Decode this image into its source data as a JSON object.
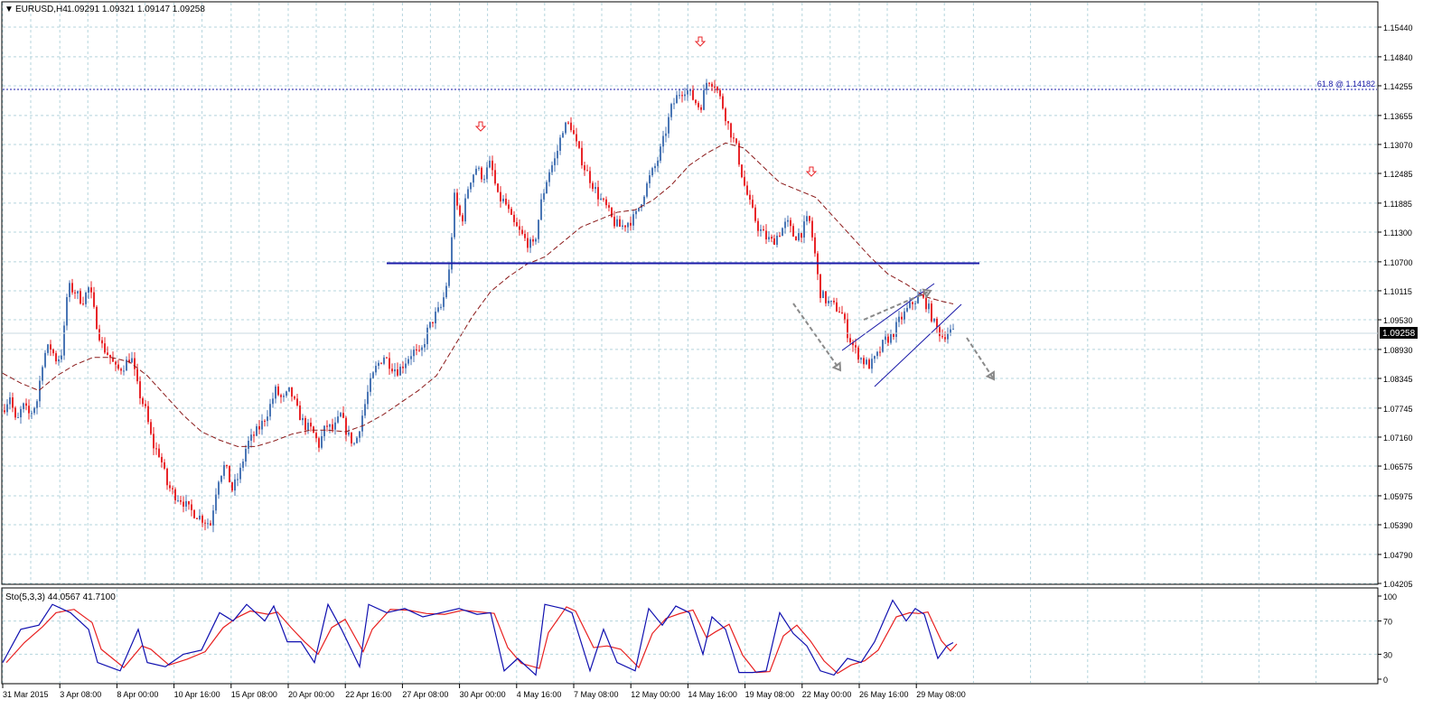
{
  "header": {
    "caret": "▼",
    "symbol_label": "EURUSD,H4",
    "ohlc": "1.09291 1.09321 1.09147 1.09258"
  },
  "price_axis": {
    "ticks": [
      "1.15440",
      "1.14840",
      "1.14255",
      "1.13655",
      "1.13070",
      "1.12485",
      "1.11885",
      "1.11300",
      "1.10700",
      "1.10115",
      "1.09530",
      "1.08930",
      "1.08345",
      "1.07745",
      "1.07160",
      "1.06575",
      "1.05975",
      "1.05390",
      "1.04790",
      "1.04205"
    ],
    "current_price": "1.09258"
  },
  "fib_label": "61.8 @ 1.14182",
  "stochastic": {
    "label": "Sto(5,3,3) 44.0567 41.7100",
    "ticks": [
      "100",
      "70",
      "30",
      "0"
    ]
  },
  "time_axis": {
    "labels": [
      "31 Mar 2015",
      "3 Apr 08:00",
      "8 Apr 00:00",
      "10 Apr 16:00",
      "15 Apr 08:00",
      "20 Apr 00:00",
      "22 Apr 16:00",
      "27 Apr 08:00",
      "30 Apr 00:00",
      "4 May 16:00",
      "7 May 08:00",
      "12 May 00:00",
      "14 May 16:00",
      "19 May 08:00",
      "22 May 00:00",
      "26 May 16:00",
      "29 May 08:00"
    ]
  },
  "colors": {
    "bull": "#4a76b5",
    "bear": "#e8262a",
    "ma": "#8b1a1a",
    "support_line": "#1a1aa8",
    "grid": "#b4d4dc",
    "arrow_gray": "#8a8a8a",
    "stoch_main": "#1010b0",
    "stoch_signal": "#e82020"
  },
  "chart_data": {
    "type": "candlestick",
    "symbol": "EURUSD",
    "timeframe": "H4",
    "ylim": [
      1.04205,
      1.1544
    ],
    "points": [
      [
        0,
        1.077
      ],
      [
        8,
        1.08
      ],
      [
        15,
        1.074
      ],
      [
        22,
        1.078
      ],
      [
        30,
        1.076
      ],
      [
        38,
        1.079
      ],
      [
        45,
        1.088
      ],
      [
        52,
        1.09
      ],
      [
        60,
        1.087
      ],
      [
        66,
        1.089
      ],
      [
        72,
        1.102
      ],
      [
        80,
        1.101
      ],
      [
        88,
        1.099
      ],
      [
        96,
        1.102
      ],
      [
        102,
        1.096
      ],
      [
        110,
        1.09
      ],
      [
        118,
        1.088
      ],
      [
        126,
        1.085
      ],
      [
        134,
        1.086
      ],
      [
        142,
        1.088
      ],
      [
        150,
        1.081
      ],
      [
        158,
        1.077
      ],
      [
        166,
        1.07
      ],
      [
        174,
        1.068
      ],
      [
        182,
        1.062
      ],
      [
        190,
        1.06
      ],
      [
        198,
        1.059
      ],
      [
        206,
        1.057
      ],
      [
        214,
        1.056
      ],
      [
        222,
        1.055
      ],
      [
        230,
        1.054
      ],
      [
        238,
        1.063
      ],
      [
        246,
        1.066
      ],
      [
        254,
        1.061
      ],
      [
        262,
        1.064
      ],
      [
        270,
        1.07
      ],
      [
        278,
        1.072
      ],
      [
        286,
        1.074
      ],
      [
        294,
        1.077
      ],
      [
        302,
        1.081
      ],
      [
        310,
        1.079
      ],
      [
        318,
        1.081
      ],
      [
        326,
        1.077
      ],
      [
        334,
        1.074
      ],
      [
        342,
        1.073
      ],
      [
        350,
        1.07
      ],
      [
        358,
        1.074
      ],
      [
        366,
        1.073
      ],
      [
        374,
        1.076
      ],
      [
        382,
        1.072
      ],
      [
        390,
        1.07
      ],
      [
        398,
        1.076
      ],
      [
        406,
        1.082
      ],
      [
        414,
        1.086
      ],
      [
        422,
        1.088
      ],
      [
        430,
        1.086
      ],
      [
        438,
        1.085
      ],
      [
        446,
        1.087
      ],
      [
        454,
        1.089
      ],
      [
        462,
        1.088
      ],
      [
        470,
        1.093
      ],
      [
        478,
        1.096
      ],
      [
        486,
        1.098
      ],
      [
        494,
        1.105
      ],
      [
        500,
        1.12
      ],
      [
        508,
        1.115
      ],
      [
        516,
        1.123
      ],
      [
        524,
        1.126
      ],
      [
        532,
        1.124
      ],
      [
        540,
        1.127
      ],
      [
        548,
        1.12
      ],
      [
        556,
        1.119
      ],
      [
        564,
        1.115
      ],
      [
        572,
        1.113
      ],
      [
        580,
        1.111
      ],
      [
        588,
        1.11
      ],
      [
        596,
        1.119
      ],
      [
        604,
        1.125
      ],
      [
        612,
        1.128
      ],
      [
        620,
        1.134
      ],
      [
        628,
        1.135
      ],
      [
        636,
        1.13
      ],
      [
        644,
        1.126
      ],
      [
        652,
        1.123
      ],
      [
        660,
        1.12
      ],
      [
        668,
        1.118
      ],
      [
        676,
        1.115
      ],
      [
        684,
        1.114
      ],
      [
        692,
        1.115
      ],
      [
        700,
        1.116
      ],
      [
        708,
        1.12
      ],
      [
        716,
        1.124
      ],
      [
        724,
        1.127
      ],
      [
        732,
        1.132
      ],
      [
        740,
        1.138
      ],
      [
        748,
        1.141
      ],
      [
        756,
        1.142
      ],
      [
        764,
        1.14
      ],
      [
        772,
        1.138
      ],
      [
        780,
        1.144
      ],
      [
        788,
        1.143
      ],
      [
        796,
        1.139
      ],
      [
        804,
        1.134
      ],
      [
        812,
        1.13
      ],
      [
        820,
        1.123
      ],
      [
        828,
        1.118
      ],
      [
        836,
        1.114
      ],
      [
        844,
        1.112
      ],
      [
        852,
        1.111
      ],
      [
        860,
        1.113
      ],
      [
        868,
        1.115
      ],
      [
        876,
        1.112
      ],
      [
        884,
        1.113
      ],
      [
        892,
        1.116
      ],
      [
        898,
        1.11
      ],
      [
        904,
        1.101
      ],
      [
        912,
        1.099
      ],
      [
        920,
        1.098
      ],
      [
        928,
        1.097
      ],
      [
        936,
        1.092
      ],
      [
        944,
        1.089
      ],
      [
        952,
        1.087
      ],
      [
        960,
        1.086
      ],
      [
        968,
        1.088
      ],
      [
        976,
        1.091
      ],
      [
        984,
        1.092
      ],
      [
        992,
        1.095
      ],
      [
        1000,
        1.097
      ],
      [
        1008,
        1.099
      ],
      [
        1016,
        1.1
      ],
      [
        1024,
        1.098
      ],
      [
        1032,
        1.094
      ],
      [
        1040,
        1.092
      ],
      [
        1048,
        1.093
      ],
      [
        1052,
        1.0926
      ]
    ],
    "ma_points": [
      [
        0,
        1.0845
      ],
      [
        20,
        1.0825
      ],
      [
        40,
        1.081
      ],
      [
        60,
        1.084
      ],
      [
        80,
        1.0862
      ],
      [
        100,
        1.0877
      ],
      [
        120,
        1.0877
      ],
      [
        140,
        1.0868
      ],
      [
        160,
        1.084
      ],
      [
        180,
        1.08
      ],
      [
        200,
        1.076
      ],
      [
        220,
        1.0727
      ],
      [
        240,
        1.071
      ],
      [
        260,
        1.0697
      ],
      [
        280,
        1.0697
      ],
      [
        300,
        1.0708
      ],
      [
        320,
        1.0722
      ],
      [
        340,
        1.073
      ],
      [
        360,
        1.073
      ],
      [
        380,
        1.0727
      ],
      [
        400,
        1.074
      ],
      [
        420,
        1.076
      ],
      [
        440,
        1.0785
      ],
      [
        460,
        1.081
      ],
      [
        480,
        1.084
      ],
      [
        500,
        1.09
      ],
      [
        520,
        1.096
      ],
      [
        540,
        1.101
      ],
      [
        560,
        1.104
      ],
      [
        580,
        1.1065
      ],
      [
        600,
        1.108
      ],
      [
        620,
        1.111
      ],
      [
        640,
        1.114
      ],
      [
        660,
        1.1155
      ],
      [
        680,
        1.117
      ],
      [
        700,
        1.1175
      ],
      [
        720,
        1.1195
      ],
      [
        740,
        1.1225
      ],
      [
        760,
        1.1265
      ],
      [
        780,
        1.129
      ],
      [
        800,
        1.131
      ],
      [
        820,
        1.13
      ],
      [
        840,
        1.1265
      ],
      [
        860,
        1.123
      ],
      [
        880,
        1.1215
      ],
      [
        900,
        1.12
      ],
      [
        920,
        1.116
      ],
      [
        940,
        1.112
      ],
      [
        960,
        1.108
      ],
      [
        980,
        1.1045
      ],
      [
        1000,
        1.1025
      ],
      [
        1020,
        1.1
      ],
      [
        1040,
        1.099
      ],
      [
        1052,
        1.0985
      ]
    ],
    "support_level": 1.1067,
    "fibonacci": {
      "level": "61.8",
      "price": 1.14182
    },
    "stochastic_values": [
      [
        0,
        20
      ],
      [
        20,
        60
      ],
      [
        40,
        65
      ],
      [
        55,
        90
      ],
      [
        75,
        80
      ],
      [
        95,
        60
      ],
      [
        105,
        20
      ],
      [
        130,
        10
      ],
      [
        150,
        60
      ],
      [
        160,
        20
      ],
      [
        180,
        15
      ],
      [
        200,
        30
      ],
      [
        220,
        35
      ],
      [
        240,
        80
      ],
      [
        255,
        70
      ],
      [
        270,
        90
      ],
      [
        290,
        70
      ],
      [
        300,
        88
      ],
      [
        315,
        45
      ],
      [
        330,
        45
      ],
      [
        345,
        20
      ],
      [
        360,
        90
      ],
      [
        375,
        60
      ],
      [
        395,
        15
      ],
      [
        405,
        90
      ],
      [
        425,
        80
      ],
      [
        445,
        85
      ],
      [
        465,
        75
      ],
      [
        485,
        80
      ],
      [
        505,
        85
      ],
      [
        525,
        78
      ],
      [
        540,
        80
      ],
      [
        555,
        10
      ],
      [
        570,
        25
      ],
      [
        590,
        5
      ],
      [
        600,
        90
      ],
      [
        620,
        85
      ],
      [
        630,
        80
      ],
      [
        650,
        10
      ],
      [
        665,
        60
      ],
      [
        680,
        20
      ],
      [
        700,
        10
      ],
      [
        715,
        85
      ],
      [
        730,
        65
      ],
      [
        745,
        88
      ],
      [
        760,
        80
      ],
      [
        775,
        30
      ],
      [
        785,
        75
      ],
      [
        800,
        60
      ],
      [
        815,
        8
      ],
      [
        830,
        8
      ],
      [
        845,
        10
      ],
      [
        860,
        80
      ],
      [
        875,
        55
      ],
      [
        890,
        40
      ],
      [
        905,
        10
      ],
      [
        920,
        5
      ],
      [
        935,
        25
      ],
      [
        950,
        20
      ],
      [
        965,
        45
      ],
      [
        985,
        95
      ],
      [
        1000,
        70
      ],
      [
        1010,
        85
      ],
      [
        1020,
        78
      ],
      [
        1035,
        25
      ],
      [
        1045,
        40
      ],
      [
        1052,
        44
      ]
    ],
    "stochastic_ylim": [
      0,
      100
    ],
    "stochastic_levels": [
      30,
      70
    ]
  }
}
